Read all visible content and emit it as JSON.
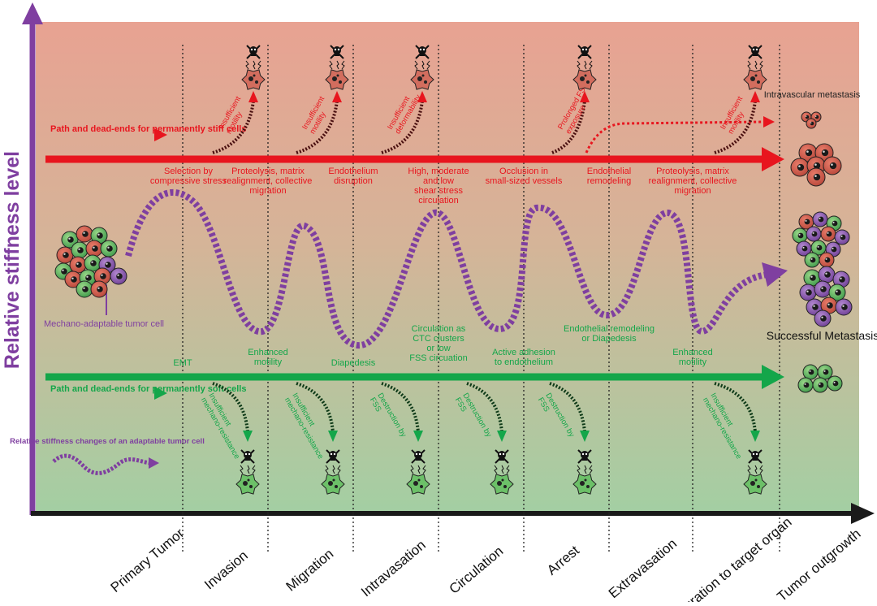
{
  "colors": {
    "red": "#e8151e",
    "green": "#14a64a",
    "purple": "#7f3fa0",
    "bg_top": "#e8a292",
    "bg_bottom": "#a3cfa3",
    "black": "#1a1a1a"
  },
  "y_axis_label": "Relative stiffness level",
  "stages": [
    "Primary Tumor",
    "Invasion",
    "Migration",
    "Intravasation",
    "Circulation",
    "Arrest",
    "Extravasation",
    "Migration to target organ",
    "Tumor outgrowth"
  ],
  "stiff_path": {
    "label": "Path and dead-ends for permanently stiff cells",
    "labels": [
      "Selection by compressive stress",
      "Proteolysis, matrix realignment, collective migration",
      "Endothelium disruption",
      "High, moderate and low shear stress circulation",
      "Occlusion in small-sized vessels",
      "Endothelial remodeling",
      "Proteolysis, matrix realignment, collective migration"
    ],
    "dead_ends": [
      "Insufficient motility",
      "Insufficient motility",
      "Insufficient deformability",
      "Prolonged FSS exposure",
      "Insufficient motility"
    ],
    "outcome": "Intravascular metastasis"
  },
  "soft_path": {
    "label": "Path and dead-ends for permanently soft cells",
    "labels": [
      "EMT",
      "Enhanced motility",
      "Diapedesis",
      "Circulation as CTC clusters or low FSS circuation",
      "Active adhesion to endothelium",
      "Endothelial remodeling or Diapedesis",
      "Enhanced motility"
    ],
    "dead_ends": [
      "Insufficient mechano-resistance",
      "Insufficient mechano-resistance",
      "Destruction by FSS",
      "Destruction by FSS",
      "Destruction by FSS",
      "Insufficient mechano-resistance"
    ]
  },
  "adaptable": {
    "label": "Mechano-adaptable tumor cell",
    "legend": "Relative stiffness changes of an adaptable tumor cell",
    "outcome": "Successful Metastasis"
  }
}
